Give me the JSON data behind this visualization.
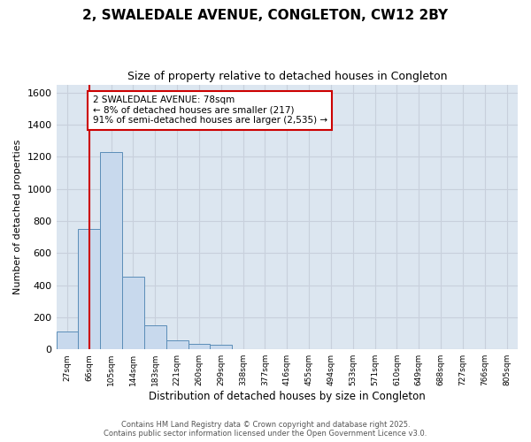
{
  "title": "2, SWALEDALE AVENUE, CONGLETON, CW12 2BY",
  "subtitle": "Size of property relative to detached houses in Congleton",
  "xlabel": "Distribution of detached houses by size in Congleton",
  "ylabel": "Number of detached properties",
  "categories": [
    "27sqm",
    "66sqm",
    "105sqm",
    "144sqm",
    "183sqm",
    "221sqm",
    "260sqm",
    "299sqm",
    "338sqm",
    "377sqm",
    "416sqm",
    "455sqm",
    "494sqm",
    "533sqm",
    "571sqm",
    "610sqm",
    "649sqm",
    "688sqm",
    "727sqm",
    "766sqm",
    "805sqm"
  ],
  "values": [
    110,
    750,
    1230,
    450,
    150,
    55,
    35,
    30,
    0,
    0,
    0,
    0,
    0,
    0,
    0,
    0,
    0,
    0,
    0,
    0,
    0
  ],
  "bar_color": "#c8d9ed",
  "bar_edge_color": "#5b8db8",
  "vline_x_idx": 1,
  "vline_color": "#cc0000",
  "ann_title": "2 SWALEDALE AVENUE: 78sqm",
  "ann_line1": "← 8% of detached houses are smaller (217)",
  "ann_line2": "91% of semi-detached houses are larger (2,535) →",
  "ann_box_color": "#cc0000",
  "ann_bg": "#ffffff",
  "ylim": [
    0,
    1650
  ],
  "yticks": [
    0,
    200,
    400,
    600,
    800,
    1000,
    1200,
    1400,
    1600
  ],
  "grid_color": "#c8d0dc",
  "bg_color": "#dce6f0",
  "fig_bg": "#ffffff",
  "footer1": "Contains HM Land Registry data © Crown copyright and database right 2025.",
  "footer2": "Contains public sector information licensed under the Open Government Licence v3.0."
}
